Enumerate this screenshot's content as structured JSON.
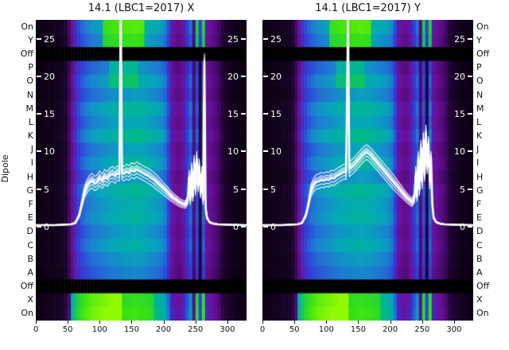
{
  "chart_data": {
    "type": "heatmap",
    "dipole_axis_label": "Dipole",
    "rows": [
      "On",
      "Y",
      "Off",
      "P",
      "O",
      "N",
      "M",
      "L",
      "K",
      "J",
      "I",
      "H",
      "G",
      "F",
      "E",
      "D",
      "C",
      "B",
      "A",
      "Off",
      "X",
      "On"
    ],
    "x_range": [
      0,
      330
    ],
    "x_ticks": [
      0,
      50,
      100,
      150,
      200,
      250,
      300
    ],
    "line_y_ticks": [
      25,
      20,
      15,
      10,
      5,
      0
    ],
    "line_y_range": [
      -12.5,
      27.5
    ],
    "line_color": "#ffffff",
    "bundle_offsets": [
      -0.95,
      0.55,
      -0.5,
      1.0,
      0.3,
      0
    ],
    "heatmap": {
      "x_step": 5,
      "base_profile": [
        0.05,
        0.05,
        0.05,
        0.06,
        0.06,
        0.06,
        0.07,
        0.07,
        0.08,
        0.1,
        0.18,
        0.28,
        0.38,
        0.44,
        0.48,
        0.51,
        0.53,
        0.55,
        0.56,
        0.57,
        0.58,
        0.59,
        0.6,
        0.61,
        0.62,
        0.62,
        0.63,
        0.63,
        0.64,
        0.64,
        0.65,
        0.65,
        0.64,
        0.64,
        0.63,
        0.62,
        0.61,
        0.6,
        0.59,
        0.57,
        0.54,
        0.45,
        0.32,
        0.28,
        0.26,
        0.27,
        0.33,
        0.42,
        0.5,
        0.22,
        0.46,
        0.12,
        0.5,
        0.3,
        0.28,
        0.25,
        0.22,
        0.18,
        0.12,
        0.09,
        0.08,
        0.07,
        0.06,
        0.06,
        0.05,
        0.05
      ],
      "row_gain": [
        1.02,
        0.94,
        0.0,
        0.88,
        0.98,
        0.9,
        1.02,
        0.95,
        1.05,
        0.93,
        1.0,
        0.9,
        1.03,
        0.97,
        1.0,
        0.92,
        0.98,
        0.9,
        0.84,
        0.0,
        1.1,
        1.15
      ],
      "bumps": [
        {
          "rows": [
            0,
            1
          ],
          "x": [
            105,
            170
          ],
          "add": 0.26
        },
        {
          "rows": [
            3,
            4
          ],
          "x": [
            115,
            160
          ],
          "add": 0.1
        },
        {
          "rows": [
            20,
            21
          ],
          "x": [
            55,
            135
          ],
          "add": 0.32
        },
        {
          "rows": [
            20,
            21
          ],
          "x": [
            135,
            185
          ],
          "add": 0.14
        },
        {
          "rows": [
            0,
            1,
            20,
            21
          ],
          "x": [
            250,
            265
          ],
          "add": 0.3
        }
      ],
      "colormap": [
        [
          0.0,
          "#000000"
        ],
        [
          0.06,
          "#10021a"
        ],
        [
          0.13,
          "#2b0545"
        ],
        [
          0.2,
          "#4a0a70"
        ],
        [
          0.28,
          "#6b109b"
        ],
        [
          0.36,
          "#4527c0"
        ],
        [
          0.44,
          "#2b46d8"
        ],
        [
          0.52,
          "#1e7ad2"
        ],
        [
          0.6,
          "#05a6bb"
        ],
        [
          0.68,
          "#00b98a"
        ],
        [
          0.76,
          "#16c94e"
        ],
        [
          0.88,
          "#3be312"
        ],
        [
          1.0,
          "#90fa00"
        ]
      ]
    },
    "panels": [
      {
        "title": "14.1 (LBC1=2017) X",
        "line": [
          [
            0,
            0.2
          ],
          [
            30,
            0.2
          ],
          [
            55,
            0.3
          ],
          [
            62,
            0.5
          ],
          [
            68,
            1.5
          ],
          [
            72,
            3.0
          ],
          [
            76,
            4.5
          ],
          [
            80,
            5.3
          ],
          [
            84,
            5.8
          ],
          [
            88,
            6.1
          ],
          [
            92,
            5.7
          ],
          [
            96,
            5.9
          ],
          [
            100,
            6.4
          ],
          [
            104,
            6.0
          ],
          [
            108,
            6.6
          ],
          [
            112,
            6.3
          ],
          [
            116,
            6.8
          ],
          [
            120,
            7.0
          ],
          [
            124,
            6.7
          ],
          [
            128,
            7.1
          ],
          [
            131,
            7.0
          ],
          [
            133,
            30
          ],
          [
            135,
            7.2
          ],
          [
            138,
            7.0
          ],
          [
            142,
            7.3
          ],
          [
            146,
            7.1
          ],
          [
            150,
            7.5
          ],
          [
            154,
            7.3
          ],
          [
            158,
            7.6
          ],
          [
            162,
            7.4
          ],
          [
            166,
            7.2
          ],
          [
            170,
            7.0
          ],
          [
            175,
            6.8
          ],
          [
            180,
            6.5
          ],
          [
            185,
            6.2
          ],
          [
            190,
            5.8
          ],
          [
            195,
            5.4
          ],
          [
            200,
            5.0
          ],
          [
            205,
            4.6
          ],
          [
            210,
            4.2
          ],
          [
            215,
            3.8
          ],
          [
            220,
            3.5
          ],
          [
            225,
            3.2
          ],
          [
            230,
            3.0
          ],
          [
            234,
            2.9
          ],
          [
            238,
            3.5
          ],
          [
            240,
            6.5
          ],
          [
            242,
            3.5
          ],
          [
            244,
            7.5
          ],
          [
            246,
            4.0
          ],
          [
            248,
            8.5
          ],
          [
            250,
            5.0
          ],
          [
            252,
            9.0
          ],
          [
            254,
            5.5
          ],
          [
            256,
            8.0
          ],
          [
            258,
            4.5
          ],
          [
            260,
            7.0
          ],
          [
            262,
            3.5
          ],
          [
            264,
            22
          ],
          [
            266,
            2.5
          ],
          [
            268,
            1.2
          ],
          [
            272,
            0.6
          ],
          [
            278,
            0.4
          ],
          [
            285,
            0.3
          ],
          [
            300,
            0.25
          ],
          [
            330,
            0.2
          ]
        ]
      },
      {
        "title": "14.1 (LBC1=2017) Y",
        "line": [
          [
            0,
            0.2
          ],
          [
            30,
            0.2
          ],
          [
            55,
            0.3
          ],
          [
            62,
            0.5
          ],
          [
            68,
            1.5
          ],
          [
            72,
            3.0
          ],
          [
            76,
            4.8
          ],
          [
            80,
            5.5
          ],
          [
            84,
            5.9
          ],
          [
            88,
            6.0
          ],
          [
            92,
            6.2
          ],
          [
            96,
            6.1
          ],
          [
            100,
            6.3
          ],
          [
            104,
            6.2
          ],
          [
            108,
            6.5
          ],
          [
            112,
            6.4
          ],
          [
            116,
            6.7
          ],
          [
            120,
            6.9
          ],
          [
            124,
            7.1
          ],
          [
            128,
            7.3
          ],
          [
            131,
            7.2
          ],
          [
            134,
            28
          ],
          [
            136,
            7.6
          ],
          [
            140,
            7.9
          ],
          [
            144,
            8.2
          ],
          [
            148,
            8.6
          ],
          [
            152,
            9.0
          ],
          [
            156,
            9.4
          ],
          [
            160,
            9.7
          ],
          [
            163,
            9.9
          ],
          [
            166,
            9.7
          ],
          [
            170,
            9.4
          ],
          [
            174,
            9.0
          ],
          [
            178,
            8.6
          ],
          [
            182,
            8.2
          ],
          [
            186,
            7.8
          ],
          [
            190,
            7.4
          ],
          [
            195,
            6.9
          ],
          [
            200,
            6.4
          ],
          [
            205,
            5.9
          ],
          [
            210,
            5.4
          ],
          [
            215,
            4.9
          ],
          [
            220,
            4.4
          ],
          [
            225,
            3.9
          ],
          [
            230,
            3.5
          ],
          [
            234,
            3.2
          ],
          [
            238,
            3.8
          ],
          [
            240,
            7.0
          ],
          [
            242,
            4.0
          ],
          [
            244,
            9.0
          ],
          [
            246,
            5.0
          ],
          [
            248,
            10.5
          ],
          [
            250,
            6.0
          ],
          [
            252,
            11.5
          ],
          [
            254,
            7.0
          ],
          [
            256,
            12.5
          ],
          [
            258,
            8.0
          ],
          [
            260,
            11.0
          ],
          [
            262,
            6.0
          ],
          [
            264,
            9.0
          ],
          [
            266,
            3.0
          ],
          [
            268,
            1.2
          ],
          [
            272,
            0.6
          ],
          [
            278,
            0.4
          ],
          [
            285,
            0.3
          ],
          [
            300,
            0.25
          ],
          [
            330,
            0.2
          ]
        ]
      }
    ]
  }
}
